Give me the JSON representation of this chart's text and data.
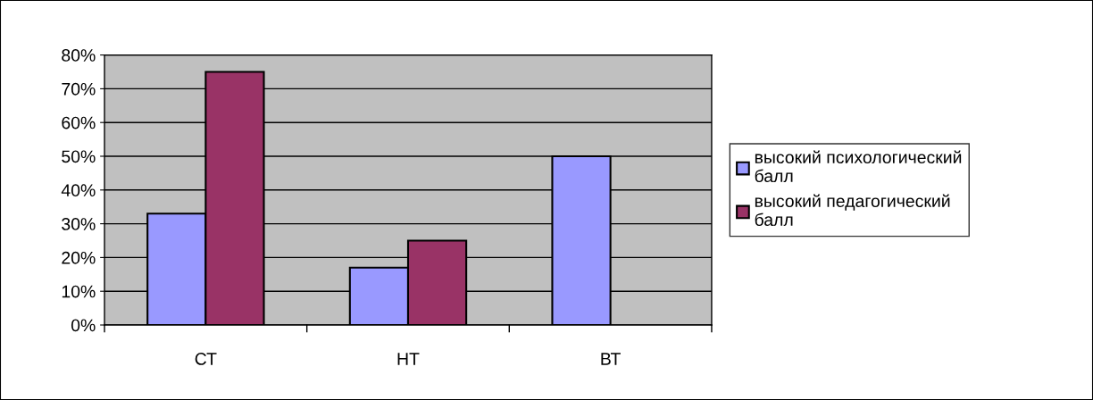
{
  "chart_data": {
    "type": "bar",
    "categories": [
      "СТ",
      "НТ",
      "ВТ"
    ],
    "series": [
      {
        "name": "высокий психологический балл",
        "color": "#9999ff",
        "values": [
          33,
          17,
          50
        ]
      },
      {
        "name": "высокий педагогический балл",
        "color": "#993366",
        "values": [
          75,
          25,
          null
        ]
      }
    ],
    "ylim": [
      0,
      80
    ],
    "yticks": [
      {
        "value": 0,
        "label": "0%"
      },
      {
        "value": 10,
        "label": "10%"
      },
      {
        "value": 20,
        "label": "20%"
      },
      {
        "value": 30,
        "label": "30%"
      },
      {
        "value": 40,
        "label": "40%"
      },
      {
        "value": 50,
        "label": "50%"
      },
      {
        "value": 60,
        "label": "60%"
      },
      {
        "value": 70,
        "label": "70%"
      },
      {
        "value": 80,
        "label": "80%"
      }
    ],
    "grid": "y",
    "legend": "right"
  }
}
